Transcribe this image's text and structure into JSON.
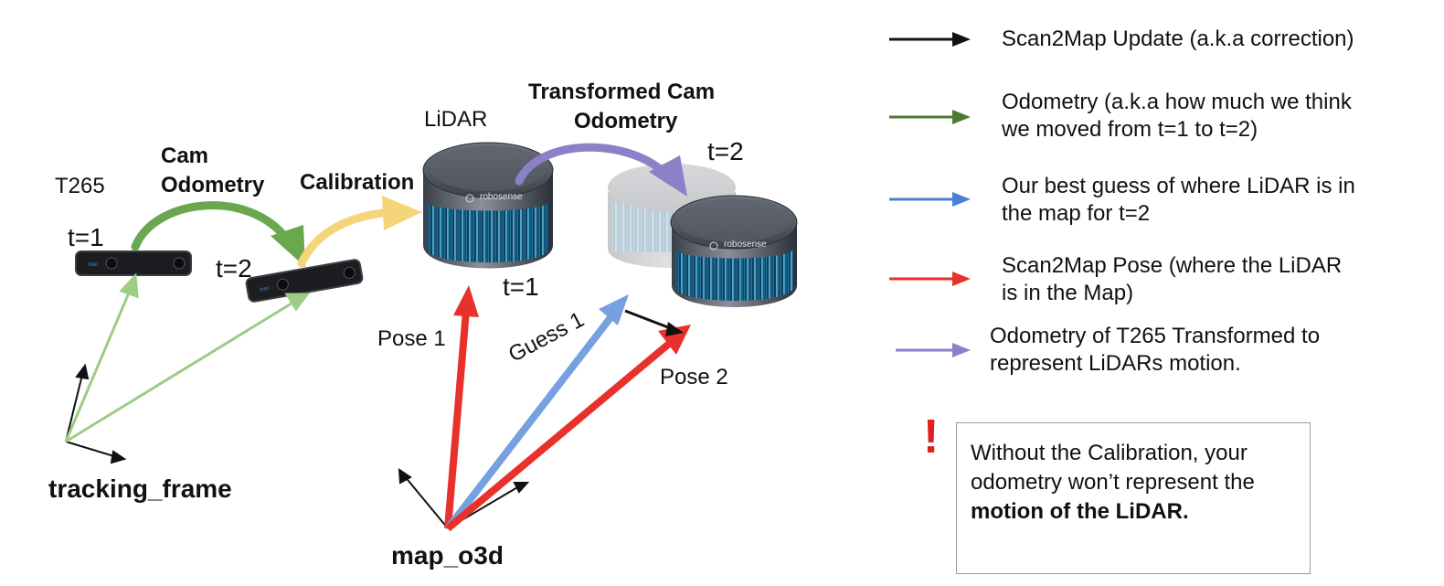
{
  "colors": {
    "black": "#111111",
    "green": "#4c7a2e",
    "blue": "#4a7fd6",
    "red": "#e8312a",
    "purple": "#8d80c6",
    "cam_odometry_arrow": "#6aa84f",
    "calibration_arrow": "#f4d57a",
    "tracking_lines": "#9dcc85",
    "guess_arrow": "#76a0e0",
    "alert": "#e02020"
  },
  "labels": {
    "t265": "T265",
    "cam_odometry_line1": "Cam",
    "cam_odometry_line2": "Odometry",
    "calibration": "Calibration",
    "t1_cam": "t=1",
    "t2_cam": "t=2",
    "lidar": "LiDAR",
    "transformed_line1": "Transformed Cam",
    "transformed_line2": "Odometry",
    "t2_lidar": "t=2",
    "t1_lidar": "t=1",
    "pose1": "Pose 1",
    "guess1": "Guess 1",
    "pose2": "Pose 2",
    "tracking_frame": "tracking_frame",
    "map_o3d": "map_o3d",
    "robosense": "robosense"
  },
  "legend": [
    {
      "color": "#111111",
      "text_line1": "Scan2Map Update (a.k.a correction)",
      "text_line2": ""
    },
    {
      "color": "#4c7a2e",
      "text_line1": "Odometry (a.k.a how much we think",
      "text_line2": "we moved from t=1 to t=2)"
    },
    {
      "color": "#4a7fd6",
      "text_line1": "Our best guess of where LiDAR is in",
      "text_line2": "the map for t=2"
    },
    {
      "color": "#e8312a",
      "text_line1": "Scan2Map Pose (where the LiDAR",
      "text_line2": "is in the Map)"
    },
    {
      "color": "#8d80c6",
      "text_line1": "Odometry of T265 Transformed to",
      "text_line2": "represent LiDARs motion."
    }
  ],
  "note": {
    "alert_symbol": "!",
    "text": "Without the Calibration, your odometry won’t represent the",
    "bold_text": "motion of the LiDAR."
  }
}
